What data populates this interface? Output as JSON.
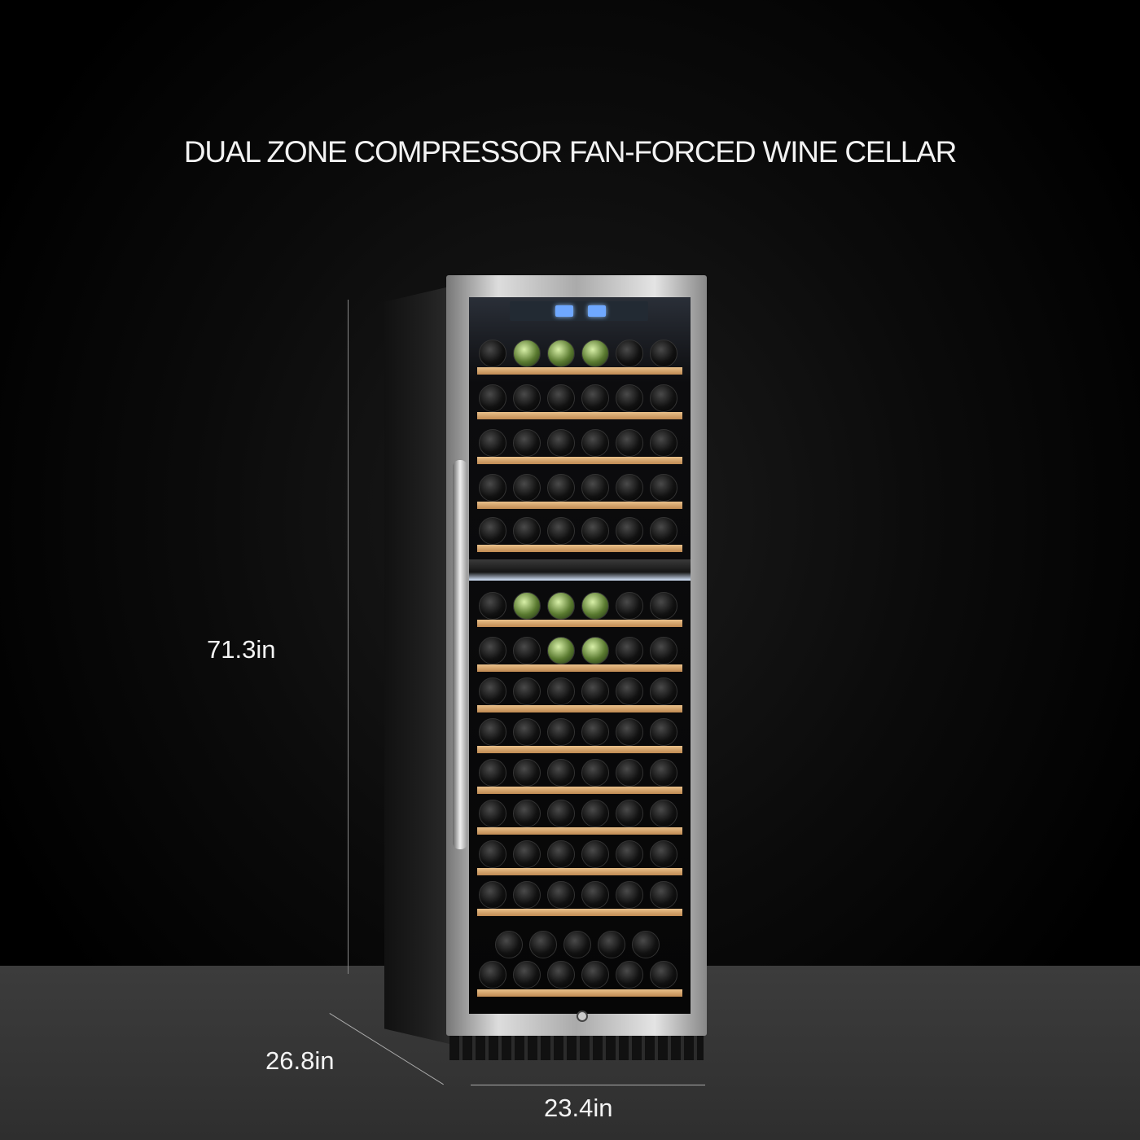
{
  "title": "DUAL ZONE COMPRESSOR FAN-FORCED WINE CELLAR",
  "dimensions": {
    "height": "71.3in",
    "depth": "26.8in",
    "width": "23.4in"
  },
  "colors": {
    "background": "#000000",
    "floor": "#3a3a3a",
    "shelf": "#d9a46a",
    "frame": "#cfcfcf"
  }
}
